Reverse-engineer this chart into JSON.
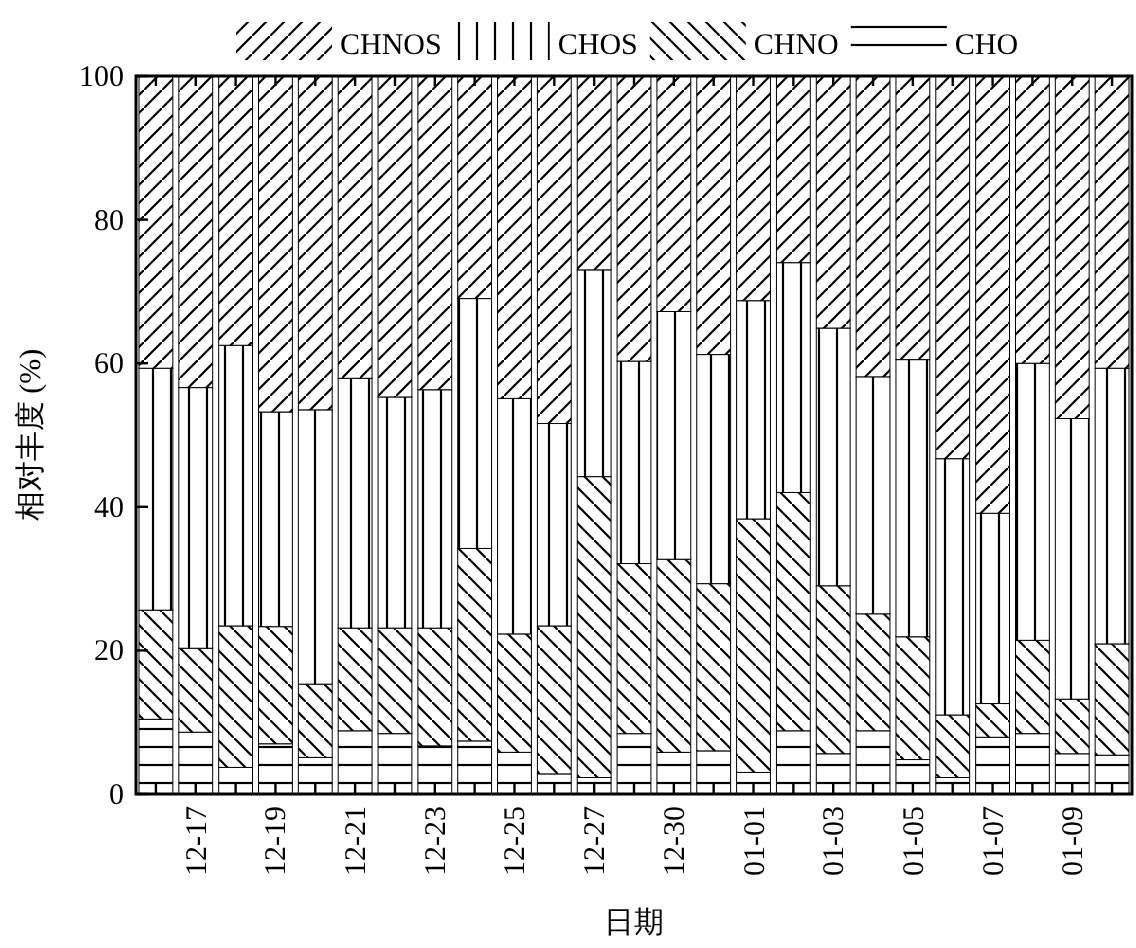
{
  "chart_data": {
    "type": "bar",
    "stacked": true,
    "ylabel": "相对丰度 (%)",
    "xlabel": "日期",
    "categories": [
      null,
      "12-17",
      null,
      "12-19",
      null,
      "12-21",
      null,
      "12-23",
      null,
      "12-25",
      null,
      "12-27",
      null,
      "12-30",
      null,
      "01-01",
      null,
      "01-03",
      null,
      "01-05",
      null,
      "01-07",
      null,
      "01-09",
      null
    ],
    "ylim": [
      0,
      100
    ],
    "yticks": [
      0,
      20,
      40,
      60,
      80,
      100
    ],
    "grid": false,
    "legend": "top",
    "series": [
      {
        "name": "CHO",
        "color": "#000000",
        "values": [
          10.4,
          8.6,
          3.7,
          7.0,
          5.1,
          8.8,
          8.4,
          6.7,
          7.4,
          5.8,
          2.8,
          2.3,
          8.4,
          5.8,
          6.0,
          3.0,
          8.8,
          5.6,
          8.8,
          4.8,
          2.3,
          7.9,
          8.4,
          5.6,
          5.4
        ]
      },
      {
        "name": "CHNO",
        "color": "#000000",
        "values": [
          15.2,
          11.7,
          19.7,
          16.3,
          10.2,
          14.3,
          14.7,
          16.4,
          26.8,
          16.5,
          20.6,
          41.9,
          23.7,
          26.9,
          23.3,
          35.3,
          33.2,
          23.4,
          16.3,
          17.1,
          8.7,
          4.7,
          13.0,
          7.6,
          15.5
        ]
      },
      {
        "name": "CHOS",
        "color": "#000000",
        "values": [
          33.7,
          36.3,
          39.1,
          29.9,
          38.2,
          34.8,
          32.2,
          33.2,
          34.8,
          32.8,
          28.2,
          28.8,
          28.2,
          34.5,
          31.9,
          30.4,
          32.0,
          35.9,
          33.0,
          38.6,
          35.7,
          26.5,
          38.6,
          39.1,
          38.4
        ]
      },
      {
        "name": "CHNOS",
        "color": "#000000",
        "values": [
          40.7,
          43.4,
          37.5,
          46.8,
          46.5,
          42.1,
          44.7,
          43.7,
          31.0,
          44.9,
          48.4,
          27.0,
          39.7,
          32.8,
          38.8,
          31.3,
          26.0,
          35.1,
          41.9,
          39.5,
          53.3,
          60.9,
          40.0,
          47.7,
          40.7
        ]
      }
    ]
  }
}
